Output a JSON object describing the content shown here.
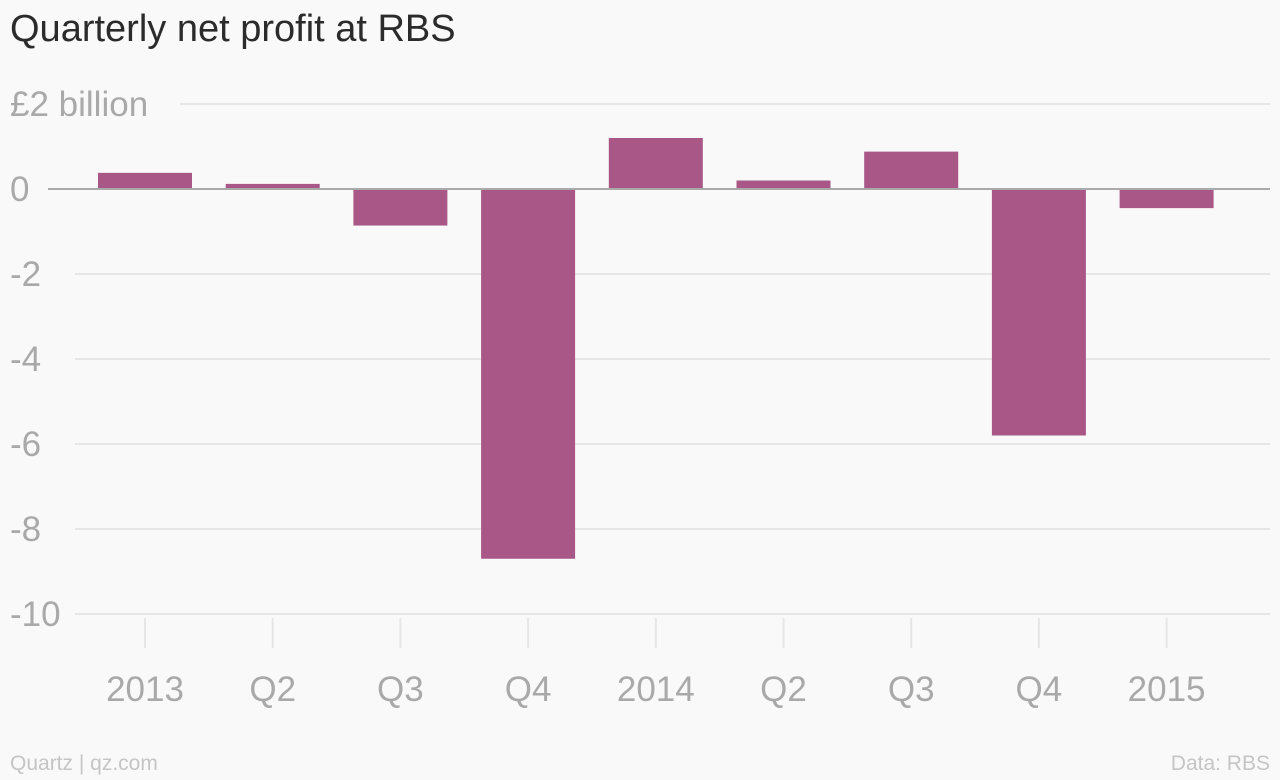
{
  "chart_data": {
    "type": "bar",
    "title": "Quarterly net profit at RBS",
    "categories": [
      "2013",
      "Q2",
      "Q3",
      "Q4",
      "2014",
      "Q2",
      "Q3",
      "Q4",
      "2015"
    ],
    "values": [
      0.38,
      0.12,
      -0.86,
      -8.7,
      1.2,
      0.2,
      0.88,
      -5.8,
      -0.45
    ],
    "ytick_labels": [
      "£2 billion",
      "0",
      "-2",
      "-4",
      "-6",
      "-8",
      "-10"
    ],
    "ytick_values": [
      2,
      0,
      -2,
      -4,
      -6,
      -8,
      -10
    ],
    "ylim": [
      -10,
      2
    ],
    "xlabel": "",
    "ylabel": "",
    "grid": true,
    "colors": {
      "bar": "#a85787",
      "grid": "#e6e6e6",
      "zero_line": "#aaaaaa",
      "labels": "#a9a9a9",
      "title": "#2b2b2b"
    }
  },
  "footer": {
    "source": "Quartz | qz.com",
    "data_credit": "Data: RBS"
  }
}
